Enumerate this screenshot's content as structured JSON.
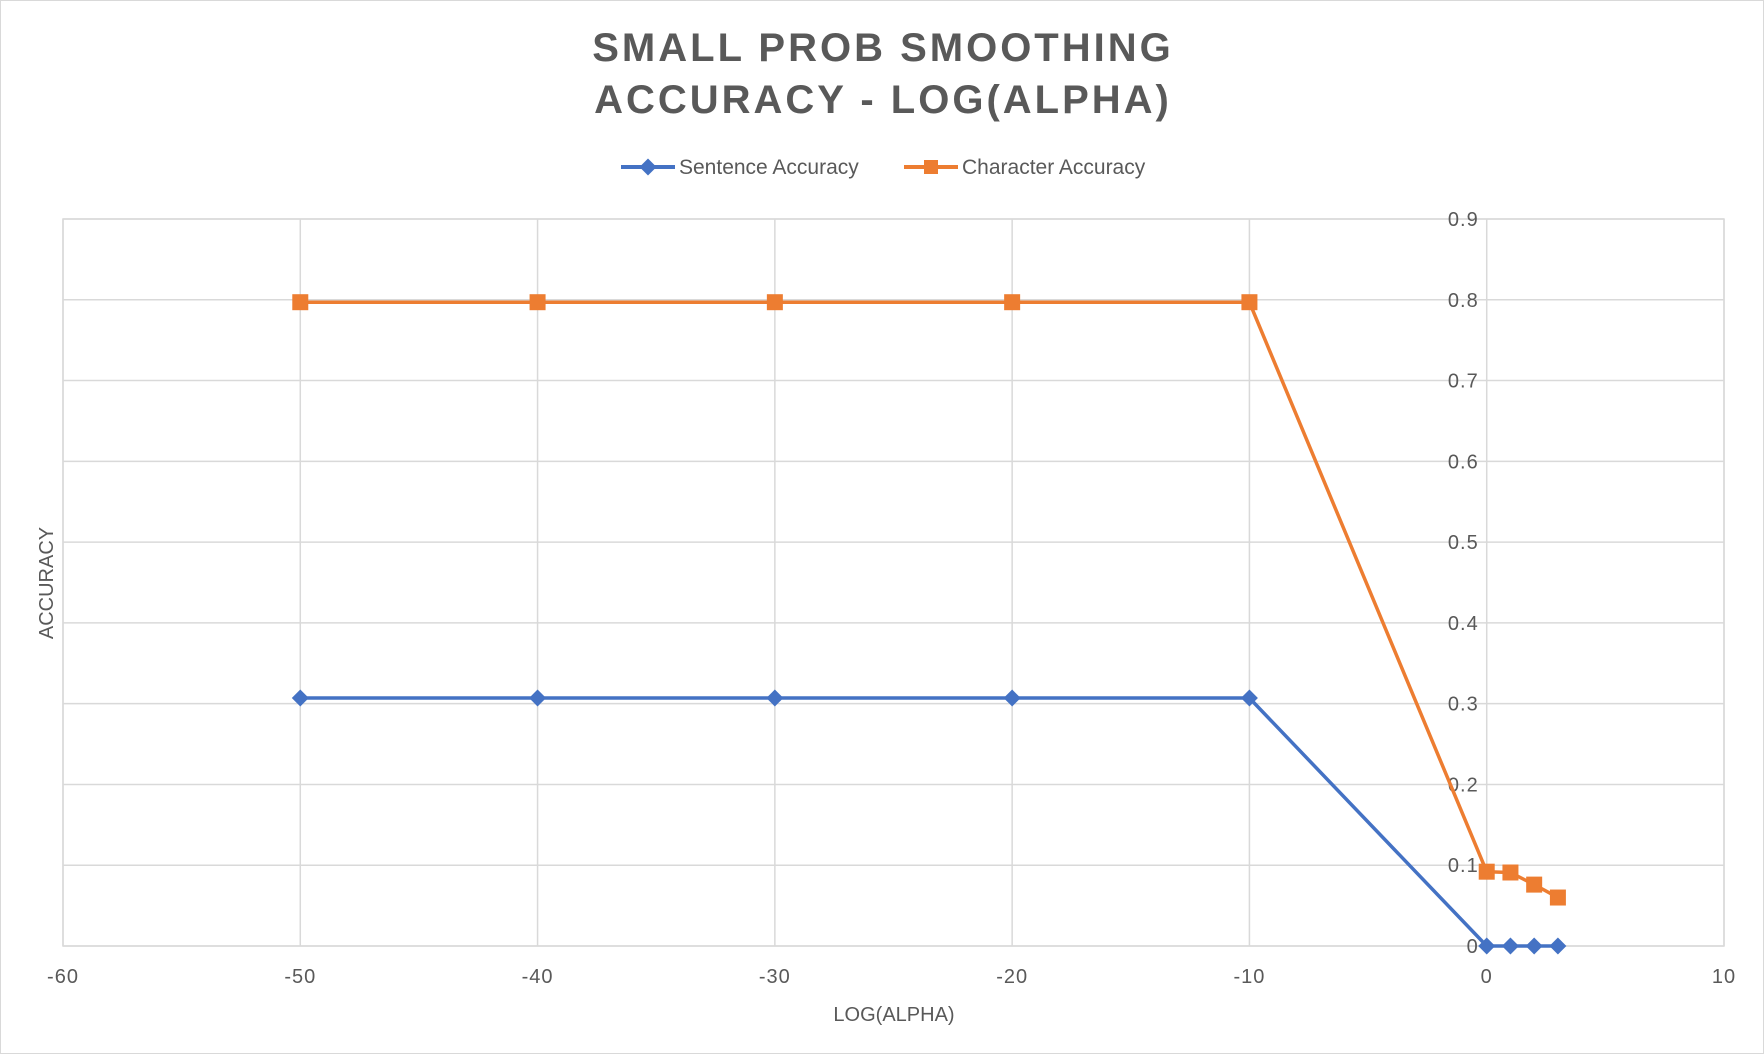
{
  "chart_data": {
    "type": "line",
    "title_lines": [
      "SMALL PROB SMOOTHING",
      "ACCURACY - LOG(ALPHA)"
    ],
    "xlabel": "LOG(ALPHA)",
    "ylabel": "ACCURACY",
    "xlim": [
      -60,
      10
    ],
    "ylim": [
      0,
      0.9
    ],
    "x_ticks": [
      -60,
      -50,
      -40,
      -30,
      -20,
      -10,
      0,
      10
    ],
    "x_tick_labels": [
      "-60",
      "-50",
      "-40",
      "-30",
      "-20",
      "-10",
      "0",
      "10"
    ],
    "y_ticks": [
      0,
      0.1,
      0.2,
      0.3,
      0.4,
      0.5,
      0.6,
      0.7,
      0.8,
      0.9
    ],
    "y_tick_labels": [
      "0",
      "0.1",
      "0.2",
      "0.3",
      "0.4",
      "0.5",
      "0.6",
      "0.7",
      "0.8",
      "0.9"
    ],
    "grid": true,
    "legend_position": "top",
    "series": [
      {
        "name": "Sentence Accuracy",
        "color": "#4472C4",
        "marker": "diamond",
        "x": [
          -50,
          -40,
          -30,
          -20,
          -10,
          0,
          1,
          2,
          3
        ],
        "y": [
          0.307,
          0.307,
          0.307,
          0.307,
          0.307,
          0,
          0,
          0,
          0
        ]
      },
      {
        "name": "Character Accuracy",
        "color": "#ED7D31",
        "marker": "square",
        "x": [
          -50,
          -40,
          -30,
          -20,
          -10,
          0,
          1,
          2,
          3
        ],
        "y": [
          0.797,
          0.797,
          0.797,
          0.797,
          0.797,
          0.092,
          0.091,
          0.076,
          0.06
        ]
      }
    ]
  }
}
